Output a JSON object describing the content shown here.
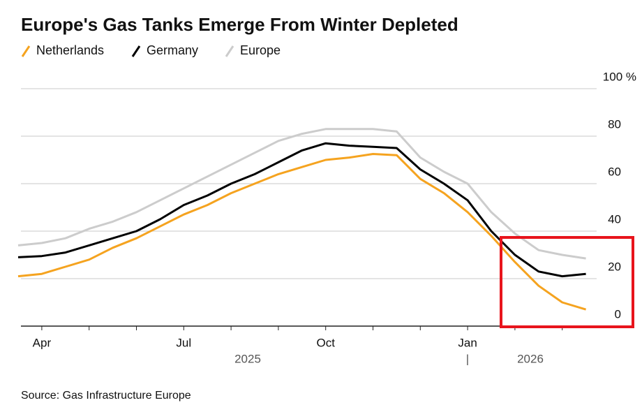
{
  "chart_data": {
    "type": "line",
    "title": "Europe's Gas Tanks Emerge From Winter Depleted",
    "source": "Source: Gas Infrastructure Europe",
    "categories": [
      null,
      "Apr",
      null,
      null,
      null,
      null,
      null,
      "Jul",
      null,
      null,
      null,
      null,
      null,
      "Oct",
      null,
      null,
      null,
      null,
      null,
      "Jan",
      null,
      null,
      null,
      null,
      null
    ],
    "year_labels": [
      "2025",
      "2026"
    ],
    "series": [
      {
        "name": "Netherlands",
        "color": "#f5a31f",
        "values": [
          21,
          22,
          25,
          28,
          33,
          37,
          42,
          47,
          51,
          56,
          60,
          64,
          67,
          70,
          71,
          72.5,
          72,
          62,
          56,
          48,
          38,
          27,
          17,
          10,
          7
        ]
      },
      {
        "name": "Germany",
        "color": "#000000",
        "values": [
          29,
          29.5,
          31,
          34,
          37,
          40,
          45,
          51,
          55,
          60,
          64,
          69,
          74,
          77,
          76,
          75.5,
          75,
          66,
          60,
          53,
          40,
          30,
          23,
          21,
          22
        ]
      },
      {
        "name": "Europe",
        "color": "#cccccc",
        "values": [
          34,
          35,
          37,
          41,
          44,
          48,
          53,
          58,
          63,
          68,
          73,
          78,
          81,
          83,
          83,
          83,
          82,
          71,
          65,
          60,
          48,
          39,
          32,
          30,
          28.5
        ]
      }
    ],
    "ylim": [
      0,
      100
    ],
    "yticks": [
      0,
      20,
      40,
      60,
      80,
      {
        "value": 100,
        "label": "100 %"
      }
    ],
    "grid": true
  }
}
